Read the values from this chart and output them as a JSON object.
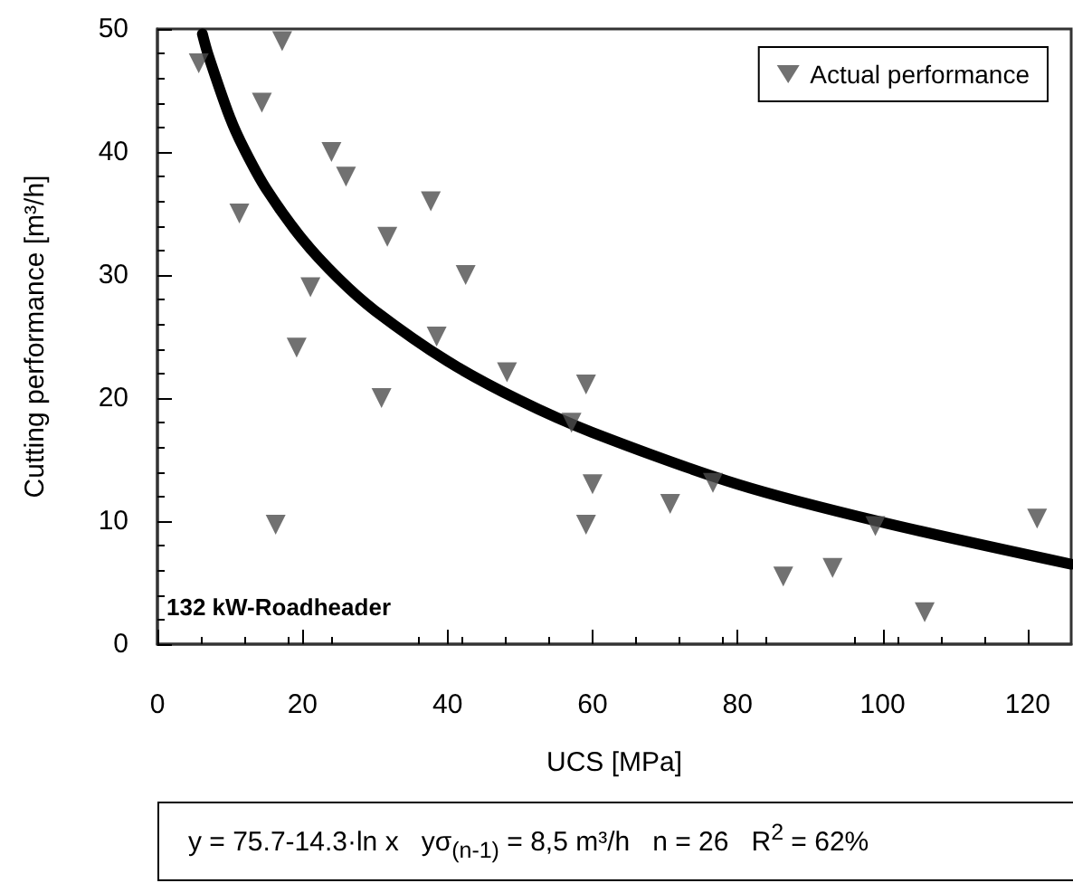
{
  "chart_data": {
    "type": "scatter",
    "xlabel": "UCS [MPa]",
    "ylabel": "Cutting performance [m³/h]",
    "xlim": [
      0,
      126
    ],
    "xticks": [
      0,
      20,
      40,
      60,
      80,
      100,
      120
    ],
    "ylim": [
      0,
      50
    ],
    "yticks": [
      0,
      10,
      20,
      30,
      40,
      50
    ],
    "grid": false,
    "legend": "top right",
    "marker": "triangle",
    "annotations": [
      "132 kW-Roadheader",
      "y = 75.7-14.3·ln x   yσ$_{(n-1)}$ = 8,5 m³/h   n = 26   R$^{2}$ = 62%"
    ],
    "series": [
      {
        "name": "Actual performance",
        "type": "scatter",
        "color": "#4d4d4d",
        "x": [
          5.7,
          17.2,
          14.4,
          24.0,
          26.0,
          11.3,
          37.7,
          31.7,
          42.5,
          21.1,
          19.2,
          38.5,
          48.2,
          30.9,
          59.1,
          57.1,
          60.0,
          59.1,
          16.3,
          70.7,
          76.6,
          86.3,
          93.1,
          99.0,
          105.8,
          121.3
        ],
        "values": [
          47.2,
          49.0,
          44.0,
          40.0,
          38.0,
          35.0,
          36.0,
          33.1,
          30.0,
          29.0,
          24.1,
          25.0,
          22.1,
          20.0,
          21.1,
          18.0,
          13.0,
          9.7,
          9.7,
          11.4,
          13.1,
          5.5,
          6.2,
          9.6,
          2.6,
          10.2
        ]
      },
      {
        "type": "line",
        "color": "#000000",
        "marker": "none",
        "x": [
          6.2,
          7,
          10,
          12,
          15,
          20,
          25,
          30,
          40,
          50,
          60,
          80,
          100,
          126
        ],
        "values": [
          49.6,
          47.9,
          42.8,
          40.2,
          37.0,
          32.9,
          29.7,
          27.1,
          23.0,
          19.8,
          17.2,
          13.0,
          9.9,
          6.5
        ]
      }
    ]
  }
}
